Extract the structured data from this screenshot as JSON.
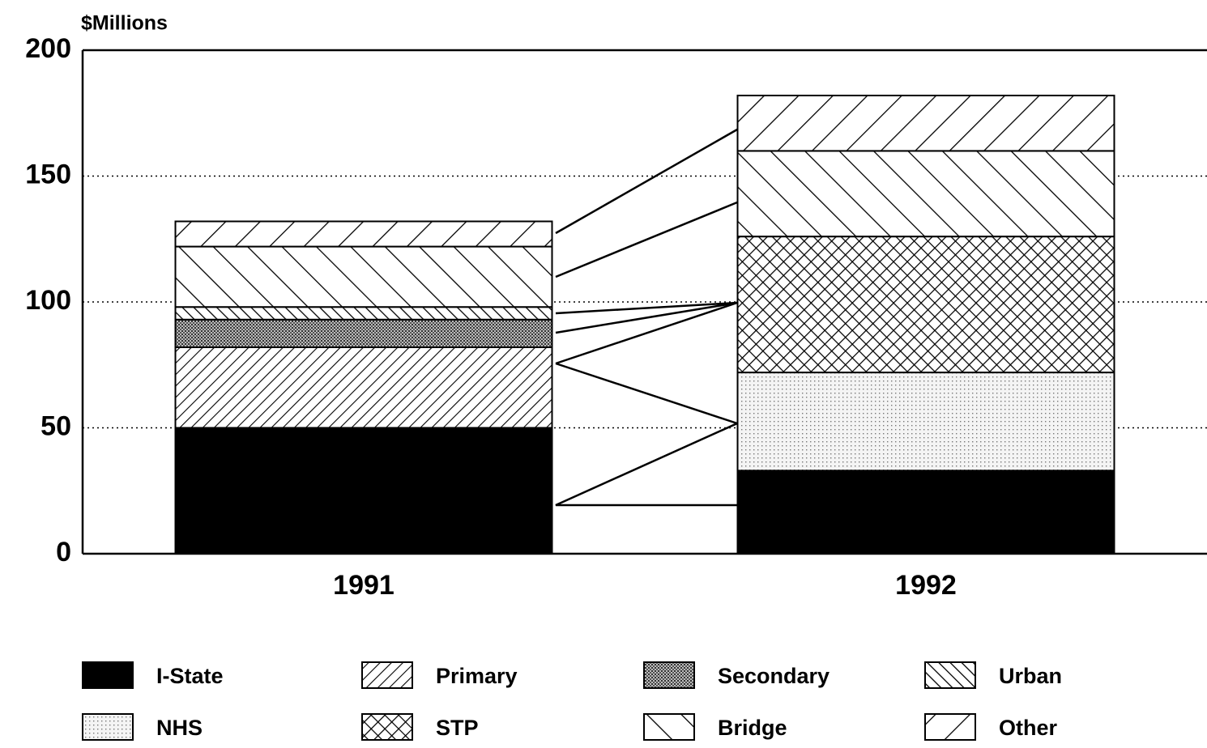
{
  "chart_data": {
    "type": "stacked_bar",
    "y_label": "$Millions",
    "categories": [
      "1991",
      "1992"
    ],
    "series": [
      {
        "name": "I-State",
        "values": [
          50,
          33
        ]
      },
      {
        "name": "Primary",
        "values": [
          32,
          0
        ]
      },
      {
        "name": "Secondary",
        "values": [
          11,
          0
        ]
      },
      {
        "name": "Urban",
        "values": [
          5,
          0
        ]
      },
      {
        "name": "NHS",
        "values": [
          0,
          39
        ]
      },
      {
        "name": "STP",
        "values": [
          0,
          54
        ]
      },
      {
        "name": "Bridge",
        "values": [
          24,
          34
        ]
      },
      {
        "name": "Other",
        "values": [
          10,
          22
        ]
      }
    ],
    "ylim": [
      0,
      200
    ],
    "yticks": [
      0,
      50,
      100,
      150,
      200
    ],
    "grid": true
  }
}
